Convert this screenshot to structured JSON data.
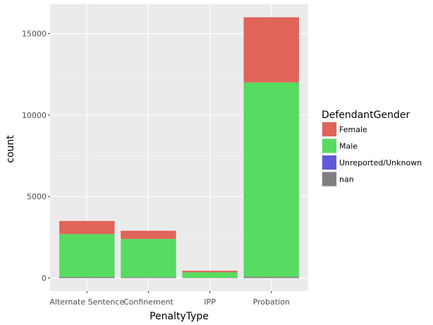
{
  "chart_data": {
    "type": "bar",
    "stacked": true,
    "categories": [
      "Alternate Sentence",
      "Confinement",
      "IPP",
      "Probation"
    ],
    "series": [
      {
        "name": "Female",
        "values": [
          800,
          500,
          100,
          4000
        ],
        "color": "#e0645a"
      },
      {
        "name": "Male",
        "values": [
          2630,
          2350,
          330,
          11920
        ],
        "color": "#56dc60"
      },
      {
        "name": "Unreported/Unknown",
        "values": [
          0,
          0,
          0,
          0
        ],
        "color": "#6159d9"
      },
      {
        "name": "nan",
        "values": [
          70,
          50,
          20,
          80
        ],
        "color": "#7f7f7f"
      }
    ],
    "xlabel": "PenaltyType",
    "ylabel": "count",
    "legend_title": "DefendantGender",
    "legend_position": "right",
    "y_ticks": [
      0,
      5000,
      10000,
      15000
    ],
    "ylim": [
      -800,
      16800
    ],
    "grid": true
  }
}
